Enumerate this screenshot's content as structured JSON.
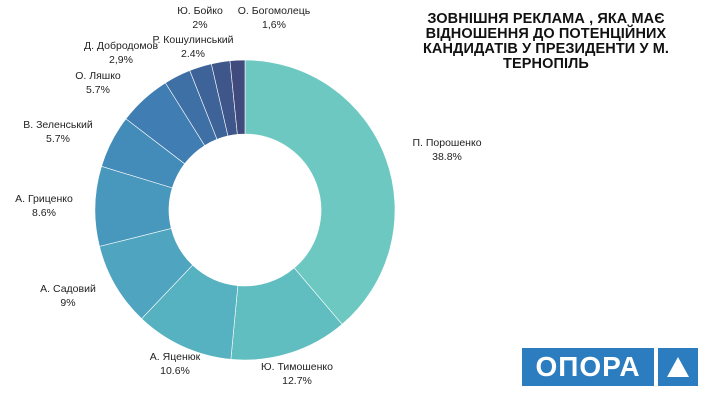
{
  "title": "ЗОВНІШНЯ РЕКЛАМА , ЯКА МАЄ ВІДНОШЕННЯ ДО ПОТЕНЦІЙНИХ КАНДИДАТІВ У ПРЕЗИДЕНТИ У М. ТЕРНОПІЛЬ",
  "logo": {
    "text": "ОПОРА",
    "mark_icon": "triangle-icon",
    "color": "#2b7dbf"
  },
  "chart_data": {
    "type": "pie",
    "donut": true,
    "title": "ЗОВНІШНЯ РЕКЛАМА , ЯКА МАЄ ВІДНОШЕННЯ ДО ПОТЕНЦІЙНИХ КАНДИДАТІВ У ПРЕЗИДЕНТИ У М. ТЕРНОПІЛЬ",
    "slices": [
      {
        "label": "П. Порошенко",
        "value": 38.8,
        "display": "38.8%",
        "color": "#6cc8c1"
      },
      {
        "label": "Ю. Тимошенко",
        "value": 12.7,
        "display": "12.7%",
        "color": "#60bdc0"
      },
      {
        "label": "А. Яценюк",
        "value": 10.6,
        "display": "10.6%",
        "color": "#56b1c0"
      },
      {
        "label": "А. Садовий",
        "value": 9,
        "display": "9%",
        "color": "#4fa4bf"
      },
      {
        "label": "А. Гриценко",
        "value": 8.6,
        "display": "8.6%",
        "color": "#4898bd"
      },
      {
        "label": "В. Зеленський",
        "value": 5.7,
        "display": "5.7%",
        "color": "#438bb8"
      },
      {
        "label": "О. Ляшко",
        "value": 5.7,
        "display": "5.7%",
        "color": "#3f7db2"
      },
      {
        "label": "Д. Добродомов",
        "value": 2.9,
        "display": "2,9%",
        "color": "#3e70a6"
      },
      {
        "label": "Р. Кошулинський",
        "value": 2.4,
        "display": "2.4%",
        "color": "#3e6399"
      },
      {
        "label": "Ю. Бойко",
        "value": 2,
        "display": "2%",
        "color": "#3f568b"
      },
      {
        "label": "О. Богомолець",
        "value": 1.6,
        "display": "1,6%",
        "color": "#404a7c"
      }
    ]
  }
}
